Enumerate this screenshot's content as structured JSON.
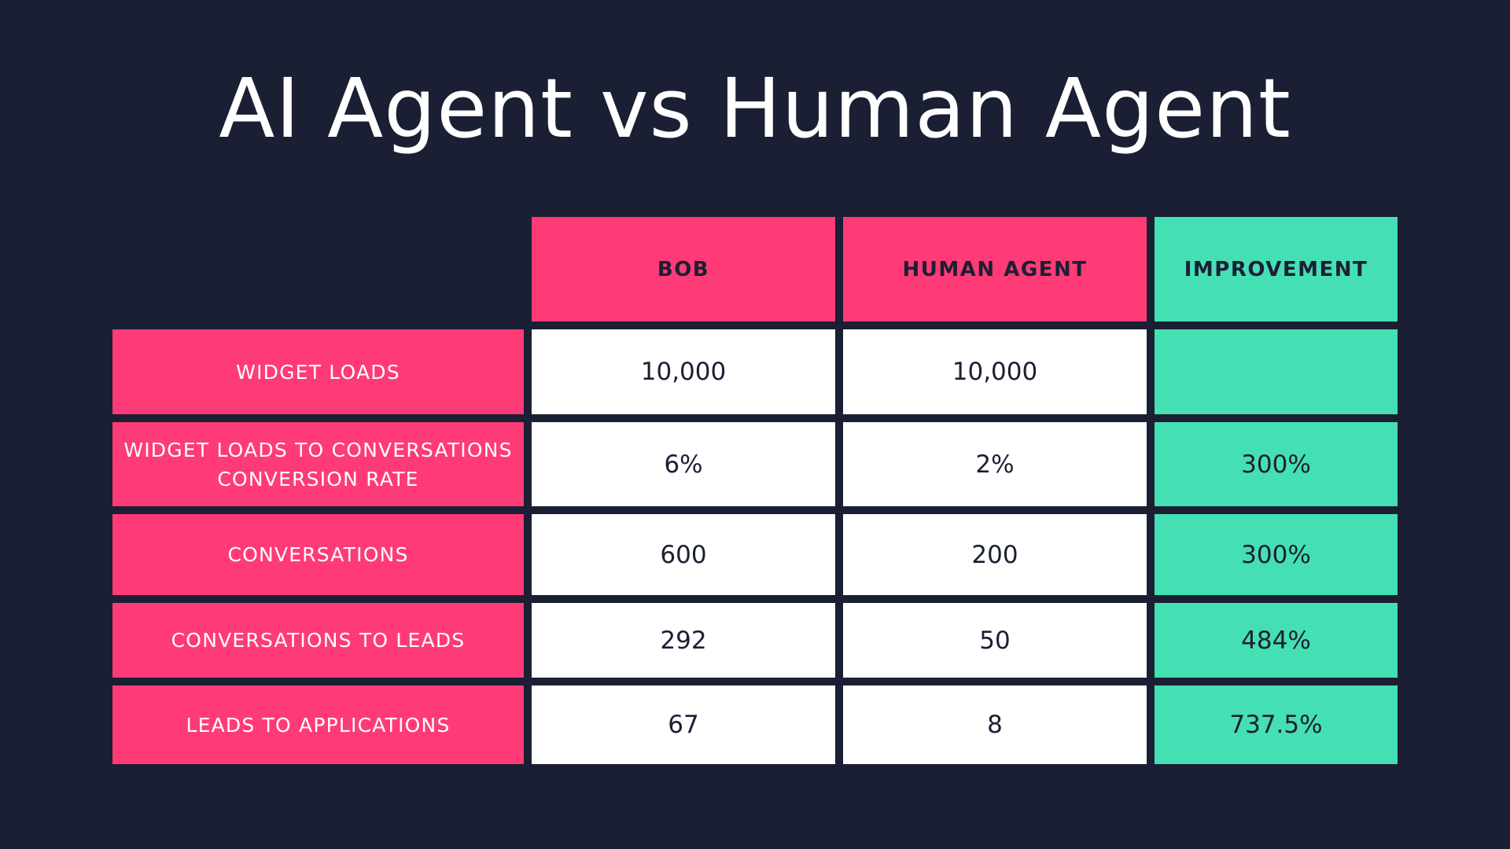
{
  "title": "AI Agent vs Human Agent",
  "colors": {
    "background": "#1b1f33",
    "pink": "#ff3b77",
    "green": "#45dfb4",
    "white": "#ffffff"
  },
  "table": {
    "headers": {
      "bob": "BOB",
      "human": "HUMAN AGENT",
      "improvement": "IMPROVEMENT"
    },
    "rows": [
      {
        "label": "WIDGET LOADS",
        "bob": "10,000",
        "human": "10,000",
        "improvement": ""
      },
      {
        "label": "WIDGET LOADS TO CONVERSATIONS CONVERSION RATE",
        "bob": "6%",
        "human": "2%",
        "improvement": "300%"
      },
      {
        "label": "CONVERSATIONS",
        "bob": "600",
        "human": "200",
        "improvement": "300%"
      },
      {
        "label": "CONVERSATIONS TO LEADS",
        "bob": "292",
        "human": "50",
        "improvement": "484%"
      },
      {
        "label": "LEADS TO APPLICATIONS",
        "bob": "67",
        "human": "8",
        "improvement": "737.5%"
      }
    ]
  }
}
